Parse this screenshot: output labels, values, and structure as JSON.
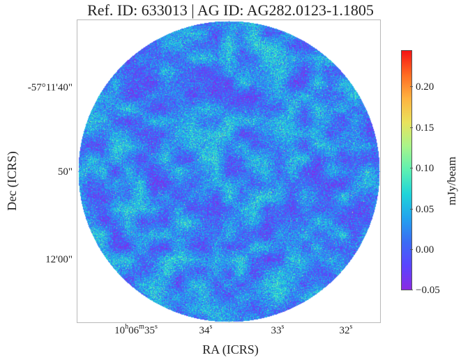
{
  "title": "Ref. ID: 633013 | AG ID: AG282.0123-1.1805",
  "axes": {
    "ylabel": "Dec (ICRS)",
    "xlabel": "RA (ICRS)",
    "yticks": [
      "-57°11'40\"",
      "50\"",
      "12'00\""
    ],
    "xticks": [
      {
        "prefix": "10",
        "h": "h",
        "mid": "06",
        "m": "m",
        "sec": "35",
        "s": "s"
      },
      {
        "prefix": "",
        "h": "",
        "mid": "",
        "m": "",
        "sec": "34",
        "s": "s"
      },
      {
        "prefix": "",
        "h": "",
        "mid": "",
        "m": "",
        "sec": "33",
        "s": "s"
      },
      {
        "prefix": "",
        "h": "",
        "mid": "",
        "m": "",
        "sec": "32",
        "s": "s"
      }
    ]
  },
  "colorbar": {
    "label": "mJy/beam",
    "ticks": [
      "0.20",
      "0.15",
      "0.10",
      "0.05",
      "0.00",
      "−0.05"
    ],
    "colormap": "rainbow",
    "colors": [
      "#8a2be2",
      "#5a44ff",
      "#3a6cf4",
      "#22a3ee",
      "#1fd4d9",
      "#5cf0b2",
      "#a8f48a",
      "#e9e25c",
      "#ffb340",
      "#ff6b22",
      "#f51414"
    ]
  },
  "image": {
    "description_shape": "circular noise map",
    "frame_color": "#b8b8b8"
  }
}
